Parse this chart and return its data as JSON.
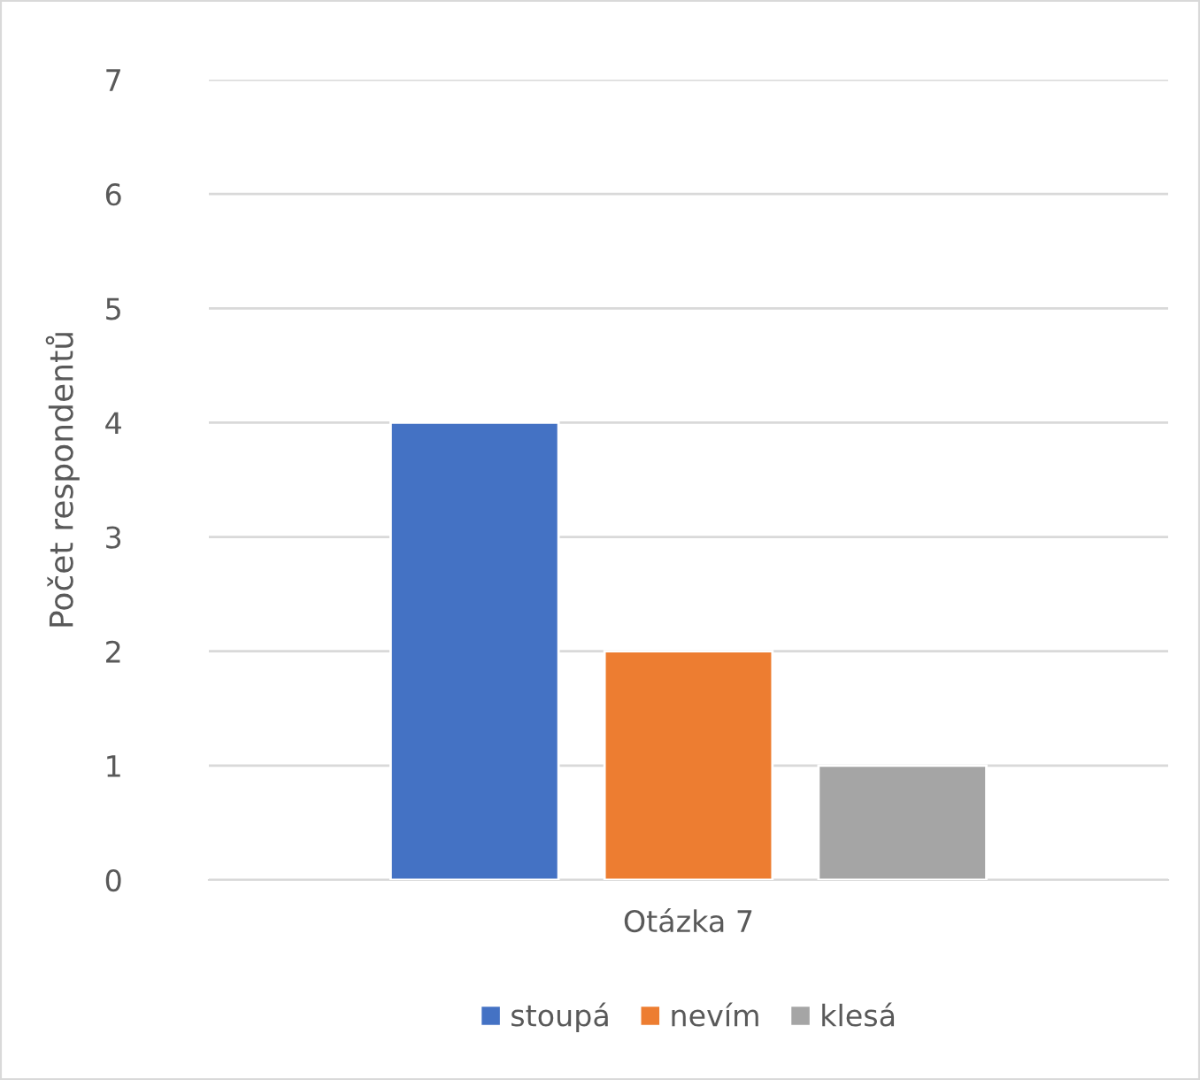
{
  "chart_data": {
    "type": "bar",
    "ylabel": "Počet respondentů",
    "categories": [
      "Otázka 7"
    ],
    "series": [
      {
        "name": "stoupá",
        "color": "#4472c4",
        "values": [
          4
        ]
      },
      {
        "name": "nevím",
        "color": "#ed7d31",
        "values": [
          2
        ]
      },
      {
        "name": "klesá",
        "color": "#a5a5a5",
        "values": [
          1
        ]
      }
    ],
    "ylim": [
      0,
      7
    ],
    "yticks": [
      0,
      1,
      2,
      3,
      4,
      5,
      6,
      7
    ],
    "grid": "y",
    "legend": "bottom"
  }
}
